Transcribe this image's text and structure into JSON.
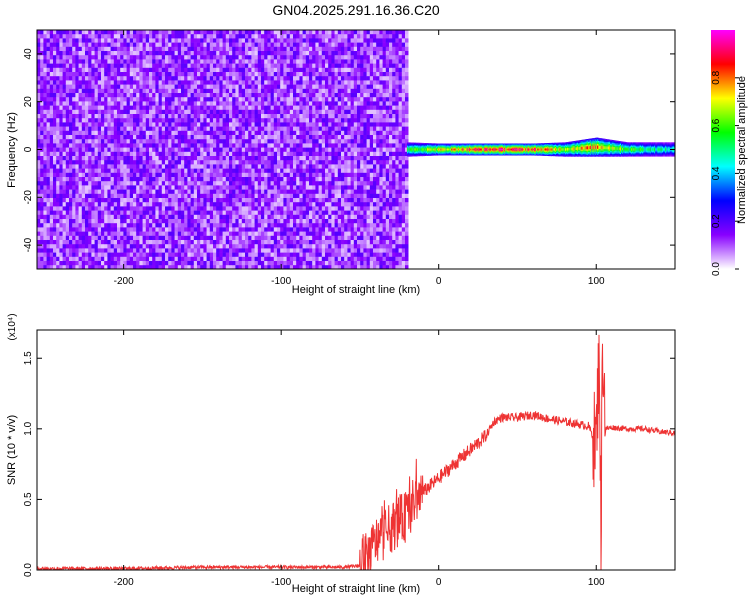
{
  "figure": {
    "title": "GN04.2025.291.16.36.C20"
  },
  "colorbar": {
    "label": "Normalized spectral amplitude",
    "ticks": [
      "0.0",
      "0.2",
      "0.4",
      "0.6",
      "0.8"
    ],
    "tick_values": [
      0.0,
      0.2,
      0.4,
      0.6,
      0.8
    ],
    "range": [
      0,
      1
    ],
    "colors": [
      "#ffffff",
      "#8800ff",
      "#0000ff",
      "#00ffff",
      "#00ff00",
      "#ffff00",
      "#ff0000",
      "#ff00ff"
    ]
  },
  "chart_data": [
    {
      "type": "heatmap",
      "title": "",
      "xlabel": "Height of straight line (km)",
      "ylabel": "Frequency (Hz)",
      "xlim": [
        -255,
        150
      ],
      "ylim": [
        -50,
        50
      ],
      "xticks": [
        -200,
        -100,
        0,
        100
      ],
      "xtick_labels": [
        "-200",
        "-100",
        "0",
        "100"
      ],
      "yticks": [
        -40,
        -20,
        0,
        20,
        40
      ],
      "ytick_labels": [
        "-40",
        "-20",
        "0",
        "20",
        "40"
      ],
      "noise_region_x": [
        -255,
        -20
      ],
      "signal_band": {
        "x": [
          -20,
          0,
          20,
          40,
          60,
          80,
          100,
          120,
          150
        ],
        "center_hz": [
          0,
          0,
          0,
          0,
          0,
          0,
          1,
          0,
          0
        ],
        "halfwidth_hz": [
          3,
          2.5,
          2.5,
          2.5,
          2.5,
          3,
          4,
          3,
          3
        ],
        "peak_amplitude": [
          0.6,
          0.7,
          0.85,
          0.9,
          0.85,
          0.7,
          0.8,
          0.6,
          0.45
        ]
      }
    },
    {
      "type": "line",
      "title": "",
      "xlabel": "Height of straight line (km)",
      "ylabel": "SNR (10 * v/v)",
      "y_multiplier": "(x10⁴)",
      "xlim": [
        -255,
        150
      ],
      "ylim": [
        0,
        1.7
      ],
      "xticks": [
        -200,
        -100,
        0,
        100
      ],
      "xtick_labels": [
        "-200",
        "-100",
        "0",
        "100"
      ],
      "yticks": [
        0.0,
        0.5,
        1.0,
        1.5
      ],
      "ytick_labels": [
        "0.0",
        "0.5",
        "1.0",
        "1.5"
      ],
      "color": "#ee3333",
      "series": [
        {
          "x": [
            -255,
            -200,
            -150,
            -100,
            -60,
            -50,
            -45,
            -40,
            -35,
            -30,
            -25,
            -20,
            -15,
            -10,
            0,
            10,
            20,
            30,
            35,
            40,
            50,
            60,
            70,
            80,
            90,
            95,
            100,
            102,
            103,
            104,
            106,
            110,
            120,
            130,
            140,
            150
          ],
          "values": [
            0.01,
            0.01,
            0.02,
            0.02,
            0.02,
            0.03,
            0.1,
            0.2,
            0.25,
            0.3,
            0.35,
            0.38,
            0.5,
            0.55,
            0.65,
            0.75,
            0.85,
            0.95,
            1.05,
            1.08,
            1.08,
            1.1,
            1.07,
            1.05,
            1.03,
            1.02,
            0.9,
            1.6,
            0.15,
            1.65,
            1.0,
            1.01,
            1.0,
            1.0,
            0.98,
            0.97
          ]
        }
      ]
    }
  ]
}
